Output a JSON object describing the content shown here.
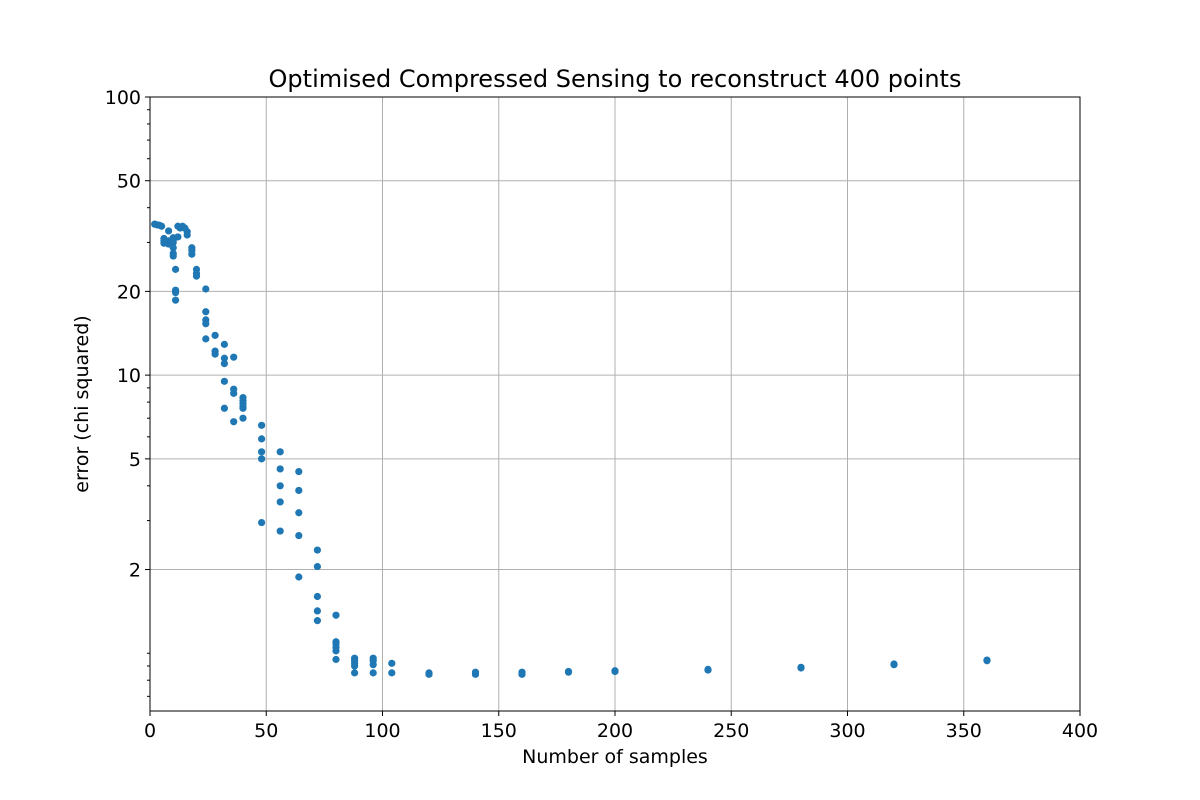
{
  "chart_data": {
    "type": "scatter",
    "title": "Optimised Compressed Sensing to reconstruct 400 points",
    "xlabel": "Number of samples",
    "ylabel": "error (chi squared)",
    "xlim": [
      0,
      400
    ],
    "ylim": [
      0.62,
      100
    ],
    "yscale": "log",
    "grid": true,
    "marker_color": "#1f77b4",
    "xticks": [
      0,
      50,
      100,
      150,
      200,
      250,
      300,
      350,
      400
    ],
    "yticks": [
      2,
      5,
      10,
      20,
      50,
      100
    ],
    "series": [
      {
        "points": [
          [
            2,
            34.9
          ],
          [
            3,
            34.7
          ],
          [
            4,
            34.6
          ],
          [
            5,
            34.3
          ],
          [
            6,
            31.0
          ],
          [
            6,
            30.3
          ],
          [
            6,
            29.8
          ],
          [
            8,
            33.0
          ],
          [
            8,
            30.4
          ],
          [
            8,
            30.0
          ],
          [
            8,
            29.6
          ],
          [
            10,
            31.2
          ],
          [
            10,
            30.6
          ],
          [
            10,
            30.0
          ],
          [
            10,
            28.7
          ],
          [
            10,
            27.4
          ],
          [
            10,
            26.8
          ],
          [
            11,
            24.0
          ],
          [
            11,
            20.2
          ],
          [
            11,
            19.8
          ],
          [
            11,
            18.6
          ],
          [
            12,
            34.3
          ],
          [
            12,
            31.4
          ],
          [
            13,
            33.8
          ],
          [
            14,
            34.3
          ],
          [
            15,
            33.8
          ],
          [
            16,
            32.8
          ],
          [
            16,
            31.9
          ],
          [
            18,
            28.7
          ],
          [
            18,
            28.1
          ],
          [
            18,
            27.2
          ],
          [
            20,
            24.0
          ],
          [
            20,
            23.2
          ],
          [
            20,
            22.7
          ],
          [
            24,
            20.4
          ],
          [
            24,
            16.9
          ],
          [
            24,
            15.8
          ],
          [
            24,
            15.3
          ],
          [
            24,
            13.5
          ],
          [
            28,
            13.9
          ],
          [
            28,
            12.2
          ],
          [
            28,
            11.9
          ],
          [
            32,
            12.9
          ],
          [
            32,
            11.5
          ],
          [
            32,
            11.0
          ],
          [
            32,
            9.5
          ],
          [
            32,
            7.6
          ],
          [
            36,
            11.6
          ],
          [
            36,
            8.9
          ],
          [
            36,
            8.6
          ],
          [
            36,
            6.8
          ],
          [
            40,
            8.3
          ],
          [
            40,
            8.1
          ],
          [
            40,
            7.9
          ],
          [
            40,
            7.7
          ],
          [
            40,
            7.6
          ],
          [
            40,
            7.0
          ],
          [
            48,
            6.6
          ],
          [
            48,
            5.9
          ],
          [
            48,
            5.3
          ],
          [
            48,
            5.0
          ],
          [
            48,
            2.95
          ],
          [
            56,
            5.3
          ],
          [
            56,
            4.6
          ],
          [
            56,
            4.0
          ],
          [
            56,
            3.5
          ],
          [
            56,
            2.75
          ],
          [
            64,
            4.5
          ],
          [
            64,
            3.85
          ],
          [
            64,
            3.2
          ],
          [
            64,
            2.65
          ],
          [
            64,
            1.88
          ],
          [
            72,
            2.35
          ],
          [
            72,
            2.05
          ],
          [
            72,
            1.6
          ],
          [
            72,
            1.42
          ],
          [
            72,
            1.31
          ],
          [
            80,
            1.37
          ],
          [
            80,
            1.1
          ],
          [
            80,
            1.08
          ],
          [
            80,
            1.05
          ],
          [
            80,
            1.02
          ],
          [
            80,
            0.95
          ],
          [
            88,
            0.96
          ],
          [
            88,
            0.94
          ],
          [
            88,
            0.92
          ],
          [
            88,
            0.9
          ],
          [
            88,
            0.85
          ],
          [
            96,
            0.96
          ],
          [
            96,
            0.94
          ],
          [
            96,
            0.91
          ],
          [
            96,
            0.85
          ],
          [
            104,
            0.92
          ],
          [
            104,
            0.85
          ],
          [
            120,
            0.85
          ],
          [
            120,
            0.84
          ],
          [
            140,
            0.855
          ],
          [
            140,
            0.84
          ],
          [
            160,
            0.855
          ],
          [
            160,
            0.84
          ],
          [
            180,
            0.86
          ],
          [
            180,
            0.855
          ],
          [
            200,
            0.865
          ],
          [
            200,
            0.86
          ],
          [
            240,
            0.875
          ],
          [
            240,
            0.87
          ],
          [
            280,
            0.89
          ],
          [
            280,
            0.885
          ],
          [
            320,
            0.915
          ],
          [
            320,
            0.91
          ],
          [
            360,
            0.945
          ],
          [
            360,
            0.94
          ]
        ]
      }
    ]
  }
}
